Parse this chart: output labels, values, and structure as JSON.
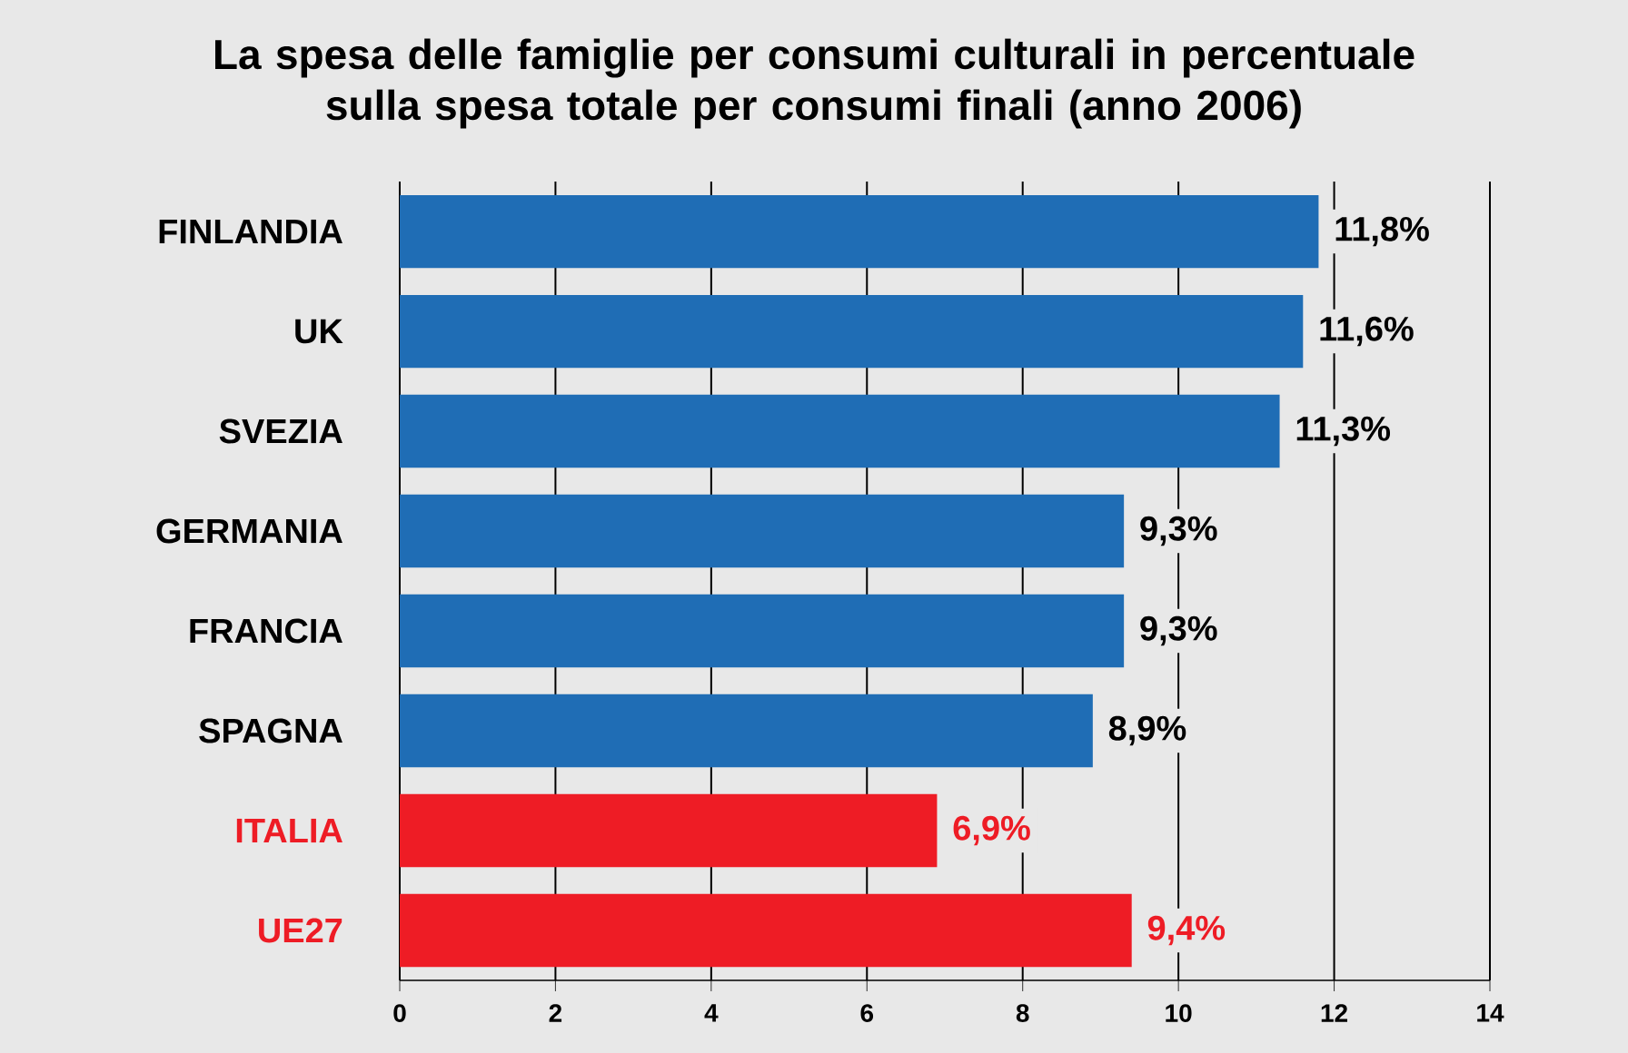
{
  "chart_data": {
    "type": "bar",
    "orientation": "horizontal",
    "title": "La spesa delle famiglie per consumi culturali in percentuale sulla spesa totale per consumi finali (anno 2006)",
    "categories": [
      "FINLANDIA",
      "UK",
      "SVEZIA",
      "GERMANIA",
      "FRANCIA",
      "SPAGNA",
      "ITALIA",
      "UE27"
    ],
    "values": [
      11.8,
      11.6,
      11.3,
      9.3,
      9.3,
      8.9,
      6.9,
      9.4
    ],
    "value_labels": [
      "11,8%",
      "11,6%",
      "11,3%",
      "9,3%",
      "9,3%",
      "8,9%",
      "6,9%",
      "9,4%"
    ],
    "colors": [
      "#1f6db5",
      "#1f6db5",
      "#1f6db5",
      "#1f6db5",
      "#1f6db5",
      "#1f6db5",
      "#ee1c25",
      "#ee1c25"
    ],
    "xlim": [
      0,
      14
    ],
    "xticks": [
      0,
      2,
      4,
      6,
      8,
      10,
      12,
      14
    ],
    "grid": "x"
  }
}
